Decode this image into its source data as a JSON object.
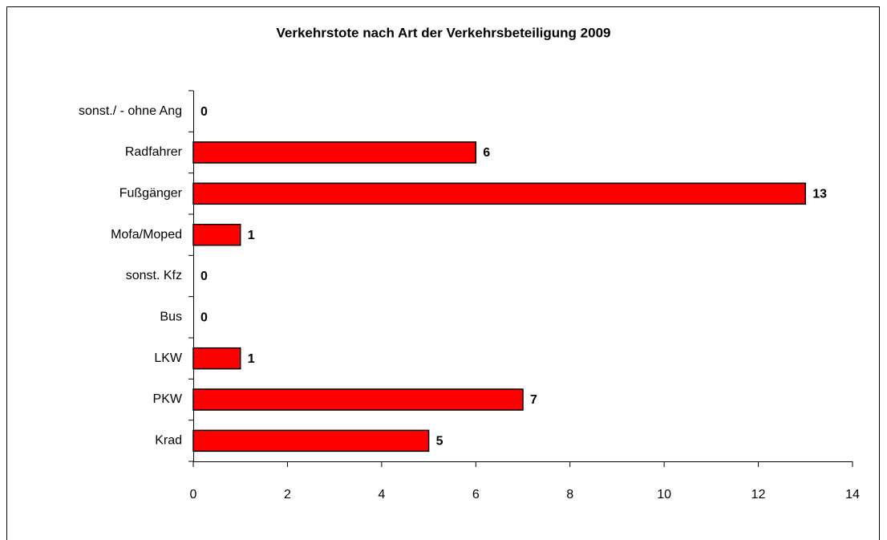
{
  "chart_data": {
    "type": "bar",
    "orientation": "horizontal",
    "title": "Verkehrstote nach Art der Verkehrsbeteiligung 2009",
    "categories": [
      "sonst./ - ohne Ang",
      "Radfahrer",
      "Fußgänger",
      "Mofa/Moped",
      "sonst. Kfz",
      "Bus",
      "LKW",
      "PKW",
      "Krad"
    ],
    "values": [
      0,
      6,
      13,
      1,
      0,
      0,
      1,
      7,
      5
    ],
    "color": "#ff0000",
    "xlim": [
      0,
      14
    ],
    "xticks": [
      0,
      2,
      4,
      6,
      8,
      10,
      12,
      14
    ],
    "grid": false
  }
}
